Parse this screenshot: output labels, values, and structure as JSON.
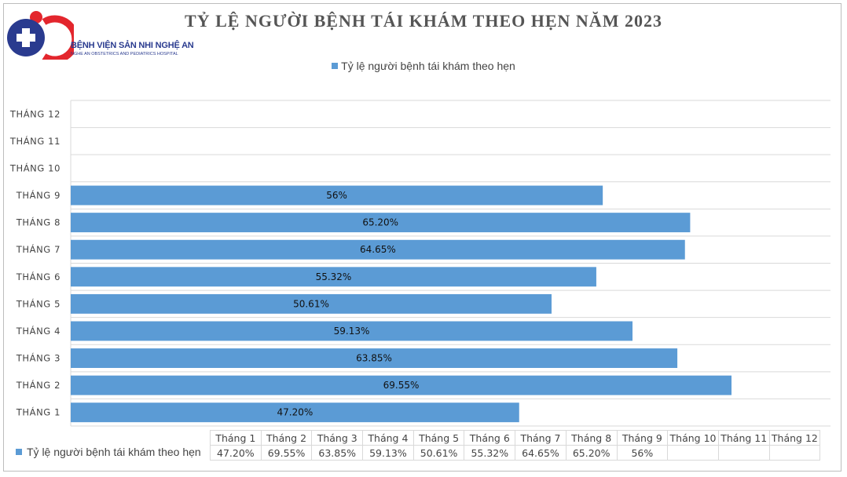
{
  "logo": {
    "name": "BỆNH VIỆN SẢN NHI NGHỆ AN",
    "subtitle": "NGHE AN OBSTETRICS AND PEDIATRICS HOSPITAL",
    "colors": {
      "blue": "#2a3b8f",
      "red": "#e3262d"
    }
  },
  "chart_data": {
    "type": "bar",
    "orientation": "horizontal",
    "title": "TỶ LỆ NGƯỜI BỆNH TÁI KHÁM THEO HẸN NĂM 2023",
    "categories": [
      "THÁNG 1",
      "THÁNG 2",
      "THÁNG 3",
      "THÁNG 4",
      "THÁNG 5",
      "THÁNG 6",
      "THÁNG 7",
      "THÁNG 8",
      "THÁNG 9",
      "THÁNG 10",
      "THÁNG 11",
      "THÁNG 12"
    ],
    "series": [
      {
        "name": "Tỷ lệ người bệnh tái khám theo hẹn",
        "color": "#5b9bd5",
        "values": [
          47.2,
          69.55,
          63.85,
          59.13,
          50.61,
          55.32,
          64.65,
          65.2,
          56,
          null,
          null,
          null
        ],
        "labels": [
          "47.20%",
          "69.55%",
          "63.85%",
          "59.13%",
          "50.61%",
          "55.32%",
          "64.65%",
          "65.20%",
          "56%",
          "",
          "",
          ""
        ]
      }
    ],
    "xlim": [
      0,
      80
    ],
    "grid": true,
    "legend": "top",
    "data_table": {
      "headers": [
        "Tháng 1",
        "Tháng 2",
        "Tháng 3",
        "Tháng 4",
        "Tháng 5",
        "Tháng 6",
        "Tháng 7",
        "Tháng 8",
        "Tháng 9",
        "Tháng 10",
        "Tháng 11",
        "Tháng 12"
      ],
      "row_label": "Tỷ lệ người bệnh tái khám theo hẹn",
      "values": [
        "47.20%",
        "69.55%",
        "63.85%",
        "59.13%",
        "50.61%",
        "55.32%",
        "64.65%",
        "65.20%",
        "56%",
        "",
        "",
        ""
      ]
    }
  }
}
